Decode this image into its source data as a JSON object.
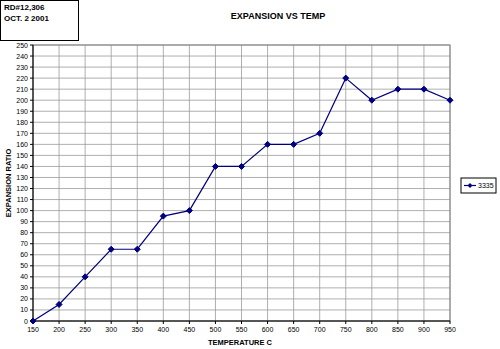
{
  "chart_data": {
    "type": "line",
    "title": "EXPANSION VS TEMP",
    "annotations": [
      "RD#12,306",
      "OCT. 2 2001"
    ],
    "x_label": "TEMPERATURE C",
    "y_label": "EXPANSION RATIO",
    "x": [
      150,
      200,
      250,
      300,
      350,
      400,
      450,
      500,
      550,
      600,
      650,
      700,
      750,
      800,
      850,
      900,
      950
    ],
    "series": [
      {
        "name": "3335",
        "color": "#000080",
        "marker": "diamond",
        "values": [
          0,
          15,
          40,
          65,
          65,
          95,
          100,
          140,
          140,
          160,
          160,
          170,
          220,
          200,
          210,
          210,
          200
        ]
      }
    ],
    "xlim": [
      150,
      950
    ],
    "xticks": [
      150,
      200,
      250,
      300,
      350,
      400,
      450,
      500,
      550,
      600,
      650,
      700,
      750,
      800,
      850,
      900,
      950
    ],
    "ylim": [
      0,
      250
    ],
    "yticks": [
      0,
      10,
      20,
      30,
      40,
      50,
      60,
      70,
      80,
      90,
      100,
      110,
      120,
      130,
      140,
      150,
      160,
      170,
      180,
      190,
      200,
      210,
      220,
      230,
      240,
      250
    ],
    "grid": true,
    "legend": "right"
  }
}
